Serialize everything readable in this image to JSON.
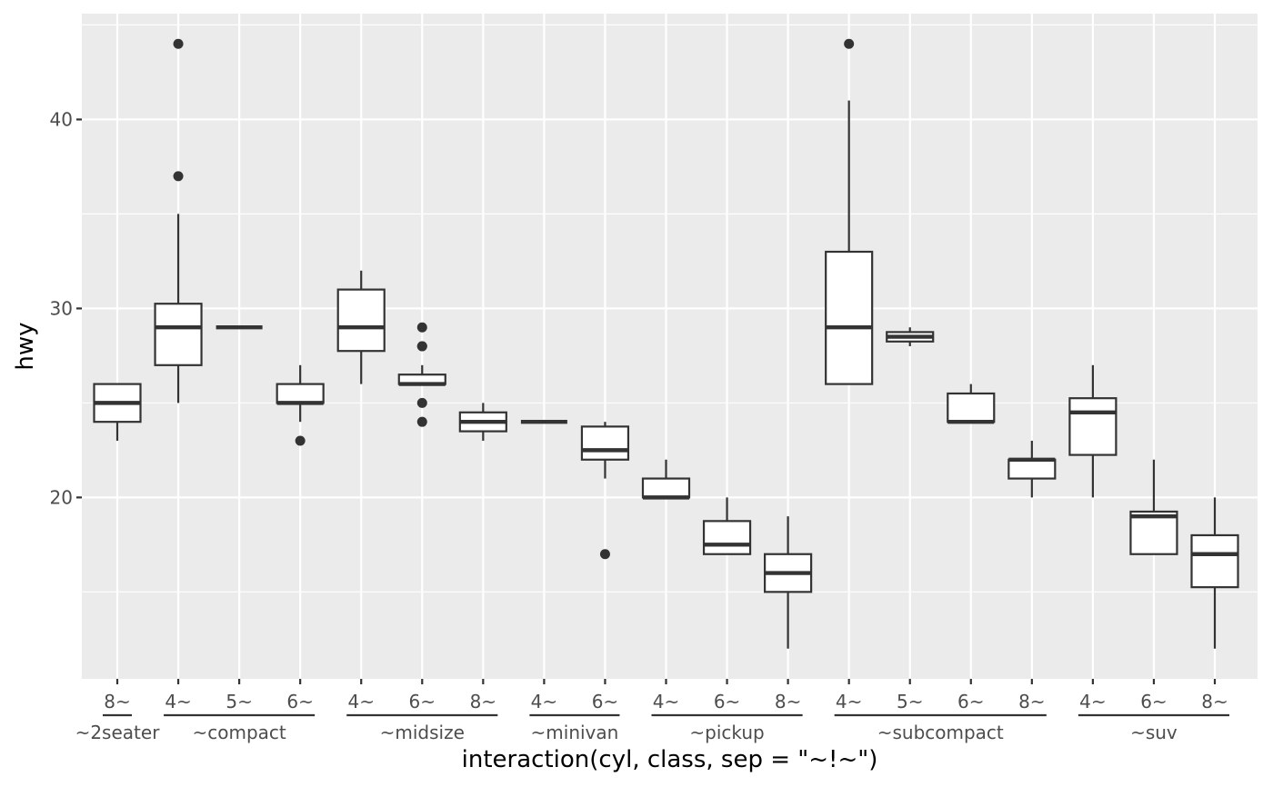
{
  "chart_data": {
    "type": "boxplot",
    "xlabel": "interaction(cyl, class, sep = \"~!~\")",
    "ylabel": "hwy",
    "ylim": [
      10.4,
      45.6
    ],
    "yticks": [
      20,
      30,
      40
    ],
    "grid": true,
    "colors": {
      "panel": "#ebebeb",
      "grid": "#ffffff",
      "box_line": "#333333",
      "box_fill": "#ffffff",
      "tick_text": "#4d4d4d"
    },
    "categories": [
      "8~",
      "4~",
      "5~",
      "6~",
      "4~",
      "6~",
      "8~",
      "4~",
      "6~",
      "4~",
      "6~",
      "8~",
      "4~",
      "5~",
      "6~",
      "8~",
      "4~",
      "6~",
      "8~"
    ],
    "groups": [
      {
        "label": "~2seater",
        "count": 1
      },
      {
        "label": "~compact",
        "count": 3
      },
      {
        "label": "~midsize",
        "count": 3
      },
      {
        "label": "~minivan",
        "count": 2
      },
      {
        "label": "~pickup",
        "count": 3
      },
      {
        "label": "~subcompact",
        "count": 4
      },
      {
        "label": "~suv",
        "count": 3
      }
    ],
    "boxes": [
      {
        "lower": 23,
        "q1": 24,
        "median": 25,
        "q3": 26,
        "upper": 26,
        "outliers": []
      },
      {
        "lower": 25,
        "q1": 27,
        "median": 29,
        "q3": 30.25,
        "upper": 35,
        "outliers": [
          37,
          44
        ]
      },
      {
        "lower": 29,
        "q1": 29,
        "median": 29,
        "q3": 29,
        "upper": 29,
        "outliers": []
      },
      {
        "lower": 24,
        "q1": 25,
        "median": 25,
        "q3": 26,
        "upper": 27,
        "outliers": [
          23
        ]
      },
      {
        "lower": 26,
        "q1": 27.75,
        "median": 29,
        "q3": 31,
        "upper": 32,
        "outliers": []
      },
      {
        "lower": 26,
        "q1": 26,
        "median": 26,
        "q3": 26.5,
        "upper": 27,
        "outliers": [
          29,
          28,
          28,
          25,
          24
        ]
      },
      {
        "lower": 23,
        "q1": 23.5,
        "median": 24,
        "q3": 24.5,
        "upper": 25,
        "outliers": []
      },
      {
        "lower": 24,
        "q1": 24,
        "median": 24,
        "q3": 24,
        "upper": 24,
        "outliers": []
      },
      {
        "lower": 21,
        "q1": 22,
        "median": 22.5,
        "q3": 23.75,
        "upper": 24,
        "outliers": [
          17
        ]
      },
      {
        "lower": 20,
        "q1": 20,
        "median": 20,
        "q3": 21,
        "upper": 22,
        "outliers": []
      },
      {
        "lower": 17,
        "q1": 17,
        "median": 17.5,
        "q3": 18.75,
        "upper": 20,
        "outliers": []
      },
      {
        "lower": 12,
        "q1": 15,
        "median": 16,
        "q3": 17,
        "upper": 19,
        "outliers": []
      },
      {
        "lower": 26,
        "q1": 26,
        "median": 29,
        "q3": 33,
        "upper": 41,
        "outliers": [
          44
        ]
      },
      {
        "lower": 28,
        "q1": 28.25,
        "median": 28.5,
        "q3": 28.75,
        "upper": 29,
        "outliers": []
      },
      {
        "lower": 24,
        "q1": 24,
        "median": 24,
        "q3": 25.5,
        "upper": 26,
        "outliers": []
      },
      {
        "lower": 20,
        "q1": 21,
        "median": 22,
        "q3": 22,
        "upper": 23,
        "outliers": []
      },
      {
        "lower": 20,
        "q1": 22.25,
        "median": 24.5,
        "q3": 25.25,
        "upper": 27,
        "outliers": []
      },
      {
        "lower": 17,
        "q1": 17,
        "median": 19,
        "q3": 19.25,
        "upper": 22,
        "outliers": []
      },
      {
        "lower": 12,
        "q1": 15.25,
        "median": 17,
        "q3": 18,
        "upper": 20,
        "outliers": []
      }
    ]
  }
}
